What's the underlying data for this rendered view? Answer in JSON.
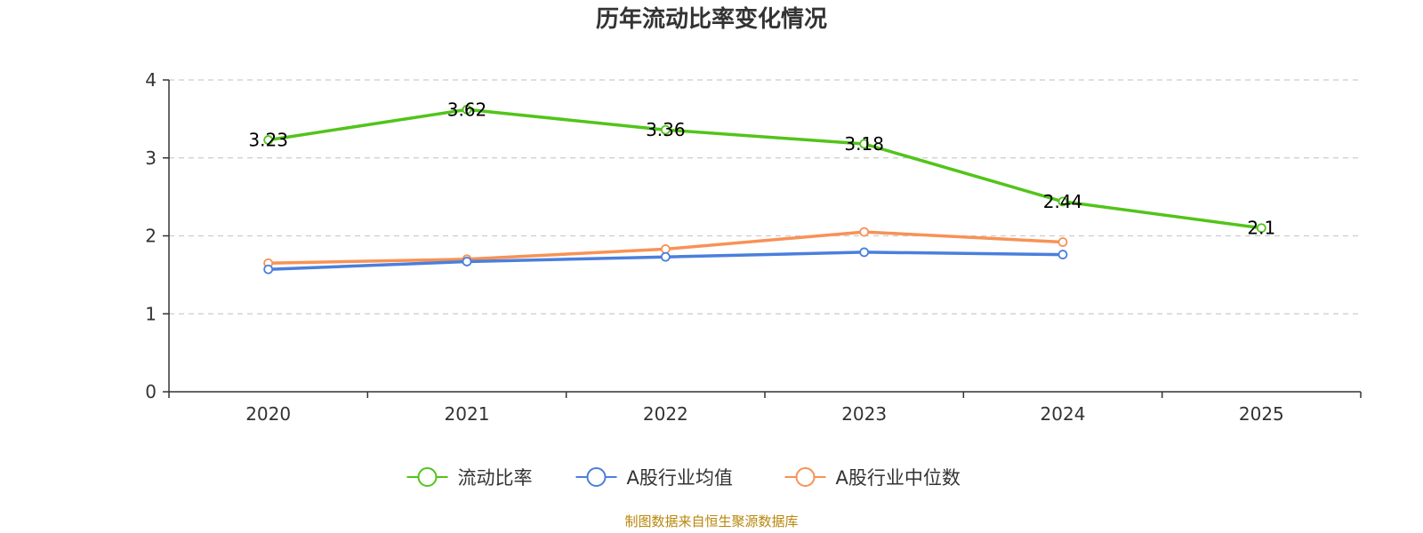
{
  "chart_data": {
    "type": "line",
    "title": "历年流动比率变化情况",
    "xlabel": "",
    "ylabel": "",
    "categories": [
      "2020",
      "2021",
      "2022",
      "2023",
      "2024",
      "2025"
    ],
    "ylim": [
      0,
      4
    ],
    "yticks": [
      0,
      1,
      2,
      3,
      4
    ],
    "grid": true,
    "legend_position": "bottom-center",
    "series": [
      {
        "name": "流动比率",
        "color": "#52c41a",
        "values": [
          3.23,
          3.62,
          3.36,
          3.18,
          2.44,
          2.1
        ],
        "labels": [
          "3.23",
          "3.62",
          "3.36",
          "3.18",
          "2.44",
          "2.1"
        ],
        "show_labels": true
      },
      {
        "name": "A股行业均值",
        "color": "#4a7fdc",
        "values": [
          1.57,
          1.67,
          1.73,
          1.79,
          1.76,
          null
        ],
        "show_labels": false
      },
      {
        "name": "A股行业中位数",
        "color": "#f79256",
        "values": [
          1.65,
          1.7,
          1.83,
          2.05,
          1.92,
          null
        ],
        "show_labels": false
      }
    ],
    "source_note": "制图数据来自恒生聚源数据库"
  }
}
